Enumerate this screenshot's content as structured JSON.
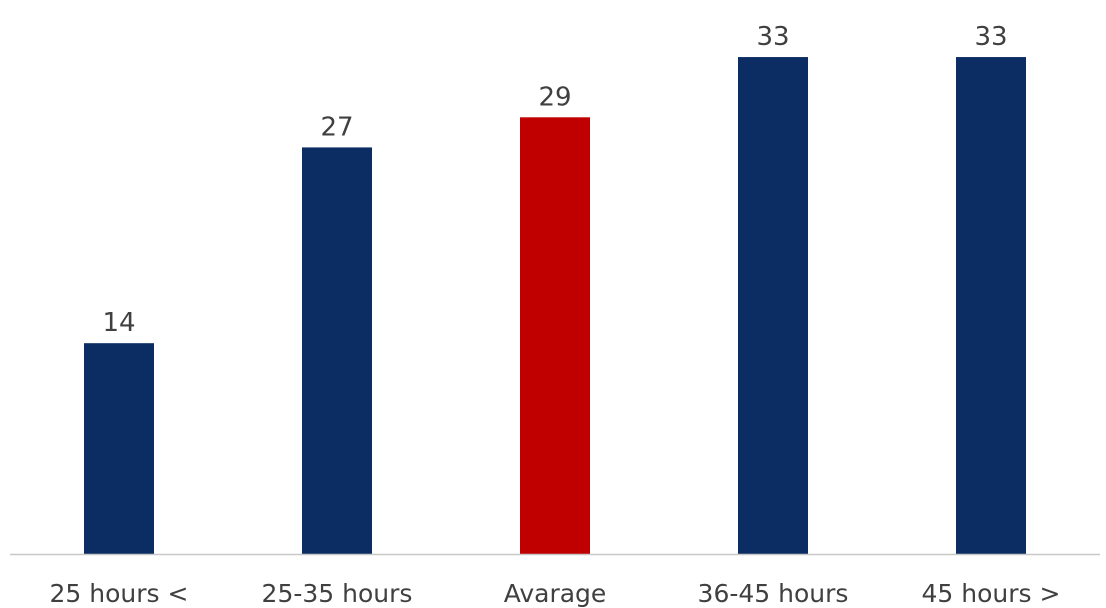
{
  "chart_data": {
    "type": "bar",
    "categories": [
      "25 hours <",
      "25-35 hours",
      "Avarage",
      "36-45 hours",
      "45 hours >"
    ],
    "values": [
      14,
      27,
      29,
      33,
      33
    ],
    "highlight_category": "Avarage",
    "title": "",
    "xlabel": "",
    "ylabel": "",
    "ylim": [
      0,
      34
    ],
    "grid": false,
    "legend": "none",
    "data_labels": true
  },
  "colors": {
    "bar": "#0b2d63",
    "highlight": "#c00000",
    "axis": "#c8c8c8",
    "text": "#404040"
  }
}
